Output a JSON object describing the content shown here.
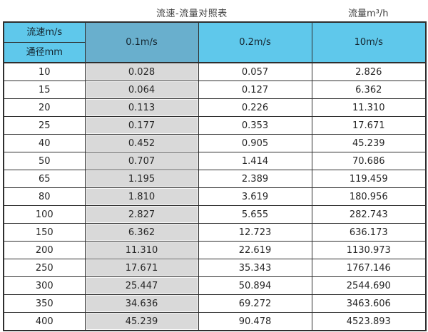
{
  "page": {
    "title": "流速-流量对照表",
    "unit_label": "流量m³/h"
  },
  "table": {
    "corner_top": "流速m/s",
    "corner_bottom": "通径mm",
    "columns": [
      "0.1m/s",
      "0.2m/s",
      "10m/s"
    ],
    "rows": [
      [
        "10",
        "0.028",
        "0.057",
        "2.826"
      ],
      [
        "15",
        "0.064",
        "0.127",
        "6.362"
      ],
      [
        "20",
        "0.113",
        "0.226",
        "11.310"
      ],
      [
        "25",
        "0.177",
        "0.353",
        "17.671"
      ],
      [
        "40",
        "0.452",
        "0.905",
        "45.239"
      ],
      [
        "50",
        "0.707",
        "1.414",
        "70.686"
      ],
      [
        "65",
        "1.195",
        "2.389",
        "119.459"
      ],
      [
        "80",
        "1.810",
        "3.619",
        "180.956"
      ],
      [
        "100",
        "2.827",
        "5.655",
        "282.743"
      ],
      [
        "150",
        "6.362",
        "12.723",
        "636.173"
      ],
      [
        "200",
        "11.310",
        "22.619",
        "1130.973"
      ],
      [
        "250",
        "17.671",
        "35.343",
        "1767.146"
      ],
      [
        "300",
        "25.447",
        "50.894",
        "2544.690"
      ],
      [
        "350",
        "34.636",
        "69.272",
        "3463.606"
      ],
      [
        "400",
        "45.239",
        "90.478",
        "4523.893"
      ]
    ]
  },
  "colors": {
    "header_blue": "#5fc8eb",
    "header_dark_blue": "#69afcd",
    "gray_column": "#d9d9d9",
    "border": "#2e2e2e"
  },
  "chart_data": {
    "type": "table",
    "title": "流速-流量对照表",
    "unit": "流量m³/h",
    "row_axis": "通径mm",
    "col_axis": "流速m/s",
    "columns": [
      "0.1m/s",
      "0.2m/s",
      "10m/s"
    ],
    "diameters_mm": [
      10,
      15,
      20,
      25,
      40,
      50,
      65,
      80,
      100,
      150,
      200,
      250,
      300,
      350,
      400
    ],
    "series": [
      {
        "name": "0.1m/s",
        "values": [
          0.028,
          0.064,
          0.113,
          0.177,
          0.452,
          0.707,
          1.195,
          1.81,
          2.827,
          6.362,
          11.31,
          17.671,
          25.447,
          34.636,
          45.239
        ]
      },
      {
        "name": "0.2m/s",
        "values": [
          0.057,
          0.127,
          0.226,
          0.353,
          0.905,
          1.414,
          2.389,
          3.619,
          5.655,
          12.723,
          22.619,
          35.343,
          50.894,
          69.272,
          90.478
        ]
      },
      {
        "name": "10m/s",
        "values": [
          2.826,
          6.362,
          11.31,
          17.671,
          45.239,
          70.686,
          119.459,
          180.956,
          282.743,
          636.173,
          1130.973,
          1767.146,
          2544.69,
          3463.606,
          4523.893
        ]
      }
    ]
  }
}
